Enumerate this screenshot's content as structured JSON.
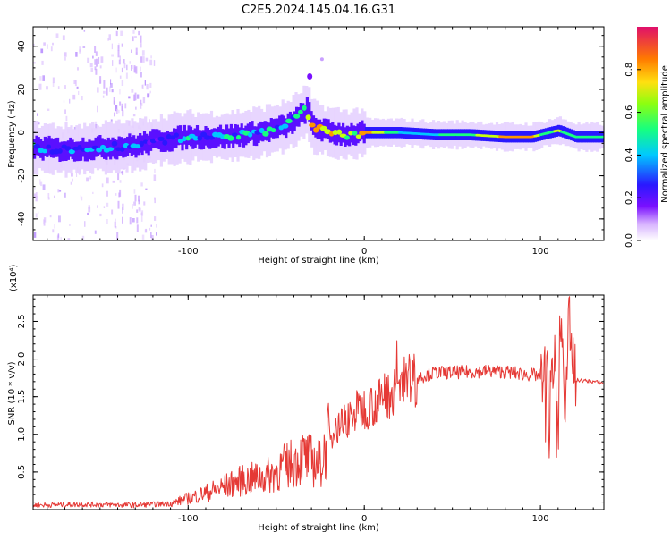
{
  "title": "C2E5.2024.145.04.16.G31",
  "colors": {
    "snr_line": "#e53935",
    "colormap": [
      "#ffffff",
      "#d9a6ff",
      "#7a10ff",
      "#2a18ff",
      "#00c8ff",
      "#16ff80",
      "#c8ff10",
      "#ff9800",
      "#e0103a"
    ]
  },
  "chart_data": [
    {
      "type": "heatmap",
      "title": "",
      "xlabel": "Height of straight line (km)",
      "ylabel": "Frequency (Hz)",
      "xlim": [
        -188,
        136
      ],
      "ylim": [
        -50,
        49
      ],
      "xticks": [
        -100,
        0,
        100
      ],
      "yticks": [
        -40,
        -20,
        0,
        20,
        40
      ],
      "colorbar": {
        "label": "Normalized spectral amplitude",
        "range": [
          0,
          1
        ],
        "ticks": [
          "0.0",
          "0.2",
          "0.4",
          "0.6",
          "0.8"
        ]
      },
      "ridge": {
        "x": [
          -188,
          -170,
          -150,
          -130,
          -120,
          -100,
          -80,
          -60,
          -45,
          -38,
          -33,
          -30,
          -20,
          -10,
          0,
          20,
          40,
          60,
          80,
          95,
          100,
          110,
          120,
          136
        ],
        "y": [
          -7,
          -8,
          -7,
          -6,
          -4,
          -2,
          -2,
          0,
          3,
          7,
          11,
          3,
          0,
          -1,
          0,
          0,
          -1,
          -1,
          -2,
          -2,
          -1,
          1,
          -2,
          -2
        ],
        "amplitude": [
          0.45,
          0.45,
          0.45,
          0.4,
          0.35,
          0.45,
          0.5,
          0.5,
          0.5,
          0.55,
          0.55,
          0.9,
          0.9,
          0.6,
          0.9,
          0.55,
          0.55,
          0.65,
          0.85,
          0.9,
          0.65,
          0.7,
          0.6,
          0.6
        ]
      }
    },
    {
      "type": "line",
      "title": "",
      "xlabel": "Height of straight line (km)",
      "ylabel": "SNR (10 * v/v)",
      "ymultiplier": "(x10⁴)",
      "xlim": [
        -188,
        136
      ],
      "ylim": [
        0,
        28500
      ],
      "xticks": [
        -100,
        0,
        100
      ],
      "yticks": [
        5000,
        10000,
        15000,
        20000,
        25000
      ],
      "ytick_labels": [
        "0.5",
        "1.0",
        "1.5",
        "2.0",
        "2.5"
      ],
      "series": [
        {
          "x": [
            -188,
            -160,
            -130,
            -110,
            -100,
            -90,
            -80,
            -70,
            -60,
            -55,
            -50,
            -45,
            -40,
            -35,
            -30,
            -25,
            -22,
            -20,
            -18,
            -15,
            -10,
            -5,
            0,
            5,
            10,
            20,
            30,
            40,
            50,
            60,
            70,
            80,
            90,
            95,
            100,
            103,
            104,
            105,
            106,
            107,
            108,
            110,
            112,
            114,
            116,
            120,
            130,
            136
          ],
          "y": [
            600,
            700,
            600,
            800,
            1500,
            2200,
            3000,
            3800,
            4200,
            4500,
            5000,
            5800,
            6200,
            7000,
            6500,
            6000,
            8000,
            9500,
            10500,
            11000,
            12000,
            13000,
            13500,
            14000,
            14500,
            16500,
            17500,
            18200,
            18200,
            18300,
            18400,
            18300,
            18000,
            17900,
            17800,
            18000,
            20000,
            5000,
            26000,
            12000,
            24000,
            10000,
            25000,
            9000,
            27000,
            17200,
            17000,
            16800
          ]
        }
      ]
    }
  ]
}
